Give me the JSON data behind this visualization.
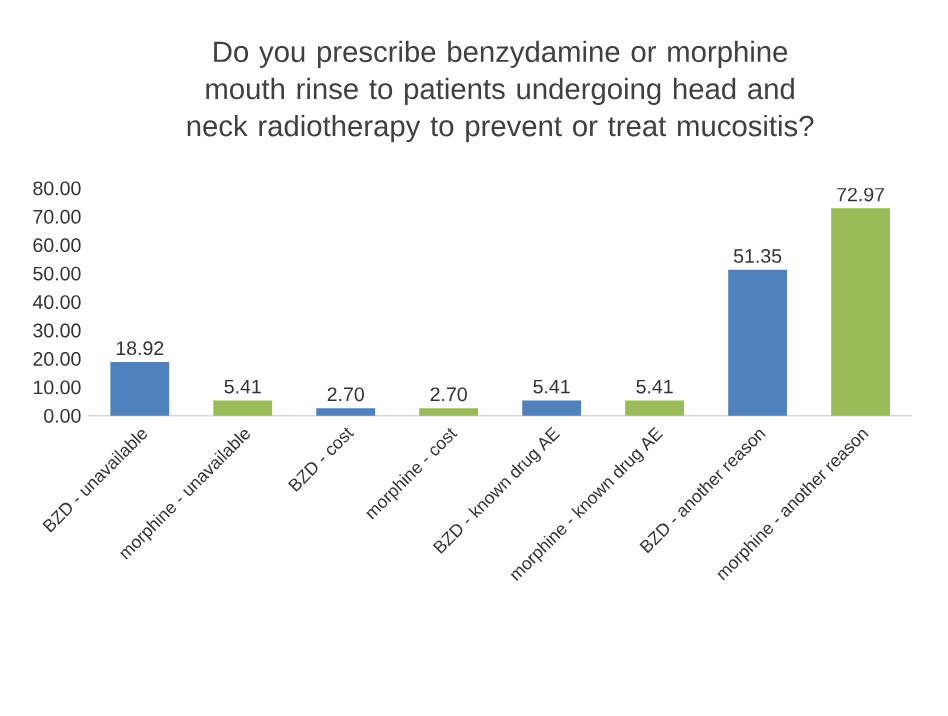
{
  "chart_data": {
    "type": "bar",
    "title": "Do you prescribe benzydamine or morphine mouth rinse to patients undergoing head and neck radiotherapy to prevent or treat mucositis?",
    "categories": [
      "BZD - unavailable",
      "morphine - unavailable",
      "BZD - cost",
      "morphine - cost",
      "BZD - known drug AE",
      "morphine - known drug AE",
      "BZD - another reason",
      "morphine - another reason"
    ],
    "values": [
      18.92,
      5.41,
      2.7,
      2.7,
      5.41,
      5.41,
      51.35,
      72.97
    ],
    "value_labels": [
      "18.92",
      "5.41",
      "2.70",
      "2.70",
      "5.41",
      "5.41",
      "51.35",
      "72.97"
    ],
    "colors": [
      "#4f81bd",
      "#9bbb59",
      "#4f81bd",
      "#9bbb59",
      "#4f81bd",
      "#9bbb59",
      "#4f81bd",
      "#9bbb59"
    ],
    "ylim": [
      0,
      80
    ],
    "yticks": [
      {
        "value": 0,
        "label": "0.00"
      },
      {
        "value": 10,
        "label": "10.00"
      },
      {
        "value": 20,
        "label": "20.00"
      },
      {
        "value": 30,
        "label": "30.00"
      },
      {
        "value": 40,
        "label": "40.00"
      },
      {
        "value": 50,
        "label": "50.00"
      },
      {
        "value": 60,
        "label": "60.00"
      },
      {
        "value": 70,
        "label": "70.00"
      },
      {
        "value": 80,
        "label": "80.00"
      }
    ]
  }
}
